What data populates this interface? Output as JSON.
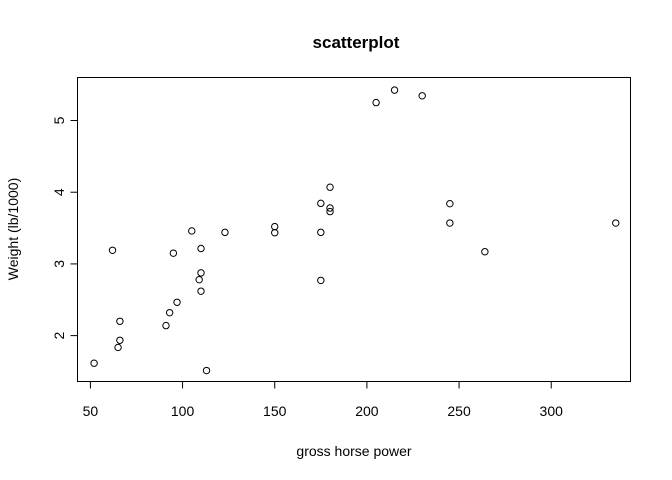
{
  "chart_data": {
    "type": "scatter",
    "title": "scatterplot",
    "xlabel": "gross horse power",
    "ylabel": "Weight (lb/1000)",
    "xlim": [
      43,
      343
    ],
    "ylim": [
      1.36,
      5.6
    ],
    "xticks": [
      50,
      100,
      150,
      200,
      250,
      300
    ],
    "yticks": [
      2,
      3,
      4,
      5
    ],
    "grid": false,
    "points": [
      {
        "x": 52,
        "y": 1.615
      },
      {
        "x": 62,
        "y": 3.19
      },
      {
        "x": 65,
        "y": 1.835
      },
      {
        "x": 66,
        "y": 1.935
      },
      {
        "x": 66,
        "y": 2.2
      },
      {
        "x": 91,
        "y": 2.14
      },
      {
        "x": 93,
        "y": 2.32
      },
      {
        "x": 95,
        "y": 3.15
      },
      {
        "x": 97,
        "y": 2.465
      },
      {
        "x": 105,
        "y": 3.46
      },
      {
        "x": 109,
        "y": 2.78
      },
      {
        "x": 110,
        "y": 2.62
      },
      {
        "x": 110,
        "y": 2.875
      },
      {
        "x": 110,
        "y": 3.215
      },
      {
        "x": 113,
        "y": 1.513
      },
      {
        "x": 123,
        "y": 3.44
      },
      {
        "x": 150,
        "y": 3.52
      },
      {
        "x": 150,
        "y": 3.435
      },
      {
        "x": 175,
        "y": 3.44
      },
      {
        "x": 175,
        "y": 3.845
      },
      {
        "x": 175,
        "y": 2.77
      },
      {
        "x": 180,
        "y": 4.07
      },
      {
        "x": 180,
        "y": 3.73
      },
      {
        "x": 180,
        "y": 3.78
      },
      {
        "x": 205,
        "y": 5.25
      },
      {
        "x": 215,
        "y": 5.424
      },
      {
        "x": 230,
        "y": 5.345
      },
      {
        "x": 245,
        "y": 3.57
      },
      {
        "x": 245,
        "y": 3.84
      },
      {
        "x": 264,
        "y": 3.17
      },
      {
        "x": 335,
        "y": 3.57
      }
    ]
  }
}
